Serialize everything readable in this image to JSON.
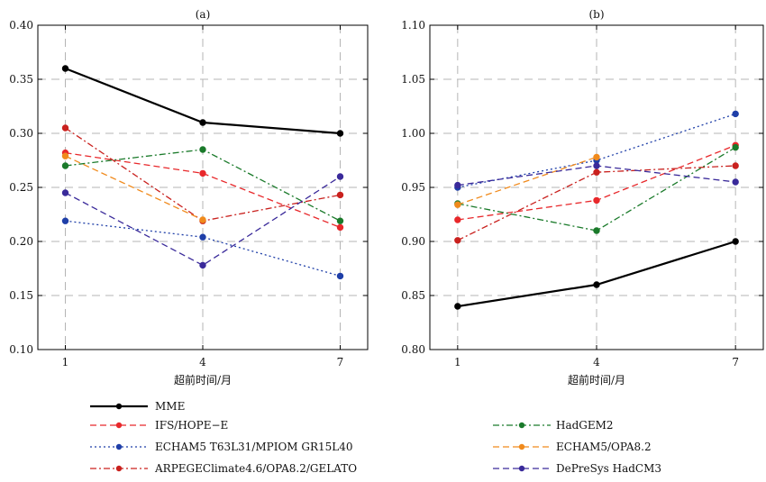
{
  "chart_data": [
    {
      "type": "line",
      "title": "(a)",
      "xlabel": "超前时间/月",
      "ylabel": "",
      "x": [
        1,
        4,
        7
      ],
      "xticks": [
        "1",
        "4",
        "7"
      ],
      "xlim": [
        0.4,
        7.6
      ],
      "ylim": [
        0.1,
        0.4
      ],
      "yticks": [
        "0.10",
        "0.15",
        "0.20",
        "0.25",
        "0.30",
        "0.35",
        "0.40"
      ],
      "grid": true,
      "series": [
        {
          "name": "MME",
          "values": [
            0.36,
            0.31,
            0.3
          ],
          "color": "#000000",
          "dash": "solid"
        },
        {
          "name": "IFS/HOPE−E",
          "values": [
            0.282,
            0.263,
            0.213
          ],
          "color": "#e8282b",
          "dash": "dashed"
        },
        {
          "name": "ECHAM5 T63L31/MPIOM GR15L40",
          "values": [
            0.219,
            0.204,
            0.168
          ],
          "color": "#1f3fa8",
          "dash": "dotted"
        },
        {
          "name": "ARPEGEClimate4.6/OPA8.2/GELATO",
          "values": [
            0.305,
            0.219,
            0.243
          ],
          "color": "#c9211e",
          "dash": "dashdot"
        },
        {
          "name": "HadGEM2",
          "values": [
            0.27,
            0.285,
            0.219
          ],
          "color": "#1a7a2a",
          "dash": "dashdot"
        },
        {
          "name": "ECHAM5/OPA8.2",
          "values": [
            0.279,
            0.22,
            null
          ],
          "color": "#f08a1c",
          "dash": "dashed"
        },
        {
          "name": "DePreSys HadCM3",
          "values": [
            0.245,
            0.178,
            0.26
          ],
          "color": "#3a2a9a",
          "dash": "dashed"
        }
      ]
    },
    {
      "type": "line",
      "title": "(b)",
      "xlabel": "超前时间/月",
      "ylabel": "",
      "x": [
        1,
        4,
        7
      ],
      "xticks": [
        "1",
        "4",
        "7"
      ],
      "xlim": [
        0.4,
        7.6
      ],
      "ylim": [
        0.8,
        1.1
      ],
      "yticks": [
        "0.80",
        "0.85",
        "0.90",
        "0.95",
        "1.00",
        "1.05",
        "1.10"
      ],
      "grid": true,
      "series": [
        {
          "name": "MME",
          "values": [
            0.84,
            0.86,
            0.9
          ],
          "color": "#000000",
          "dash": "solid"
        },
        {
          "name": "IFS/HOPE−E",
          "values": [
            0.92,
            0.938,
            0.989
          ],
          "color": "#e8282b",
          "dash": "dashed"
        },
        {
          "name": "ECHAM5 T63L31/MPIOM GR15L40",
          "values": [
            0.95,
            0.975,
            1.018
          ],
          "color": "#1f3fa8",
          "dash": "dotted"
        },
        {
          "name": "ARPEGEClimate4.6/OPA8.2/GELATO",
          "values": [
            0.901,
            0.964,
            0.97
          ],
          "color": "#c9211e",
          "dash": "dashdot"
        },
        {
          "name": "HadGEM2",
          "values": [
            0.935,
            0.91,
            0.987
          ],
          "color": "#1a7a2a",
          "dash": "dashdot"
        },
        {
          "name": "ECHAM5/OPA8.2",
          "values": [
            0.934,
            0.978,
            null
          ],
          "color": "#f08a1c",
          "dash": "dashed"
        },
        {
          "name": "DePreSys HadCM3",
          "values": [
            0.952,
            0.97,
            0.955
          ],
          "color": "#3a2a9a",
          "dash": "dashed"
        }
      ]
    }
  ],
  "legend": {
    "placement": "bottom",
    "entries": [
      {
        "label": "MME",
        "color": "#000000",
        "dash": "solid"
      },
      {
        "label": "IFS/HOPE−E",
        "color": "#e8282b",
        "dash": "dashed"
      },
      {
        "label": "HadGEM2",
        "color": "#1a7a2a",
        "dash": "dashdot"
      },
      {
        "label": "ECHAM5 T63L31/MPIOM GR15L40",
        "color": "#1f3fa8",
        "dash": "dotted"
      },
      {
        "label": "ECHAM5/OPA8.2",
        "color": "#f08a1c",
        "dash": "dashed"
      },
      {
        "label": "ARPEGEClimate4.6/OPA8.2/GELATO",
        "color": "#c9211e",
        "dash": "dashdot"
      },
      {
        "label": "DePreSys HadCM3",
        "color": "#3a2a9a",
        "dash": "dashed"
      }
    ]
  }
}
